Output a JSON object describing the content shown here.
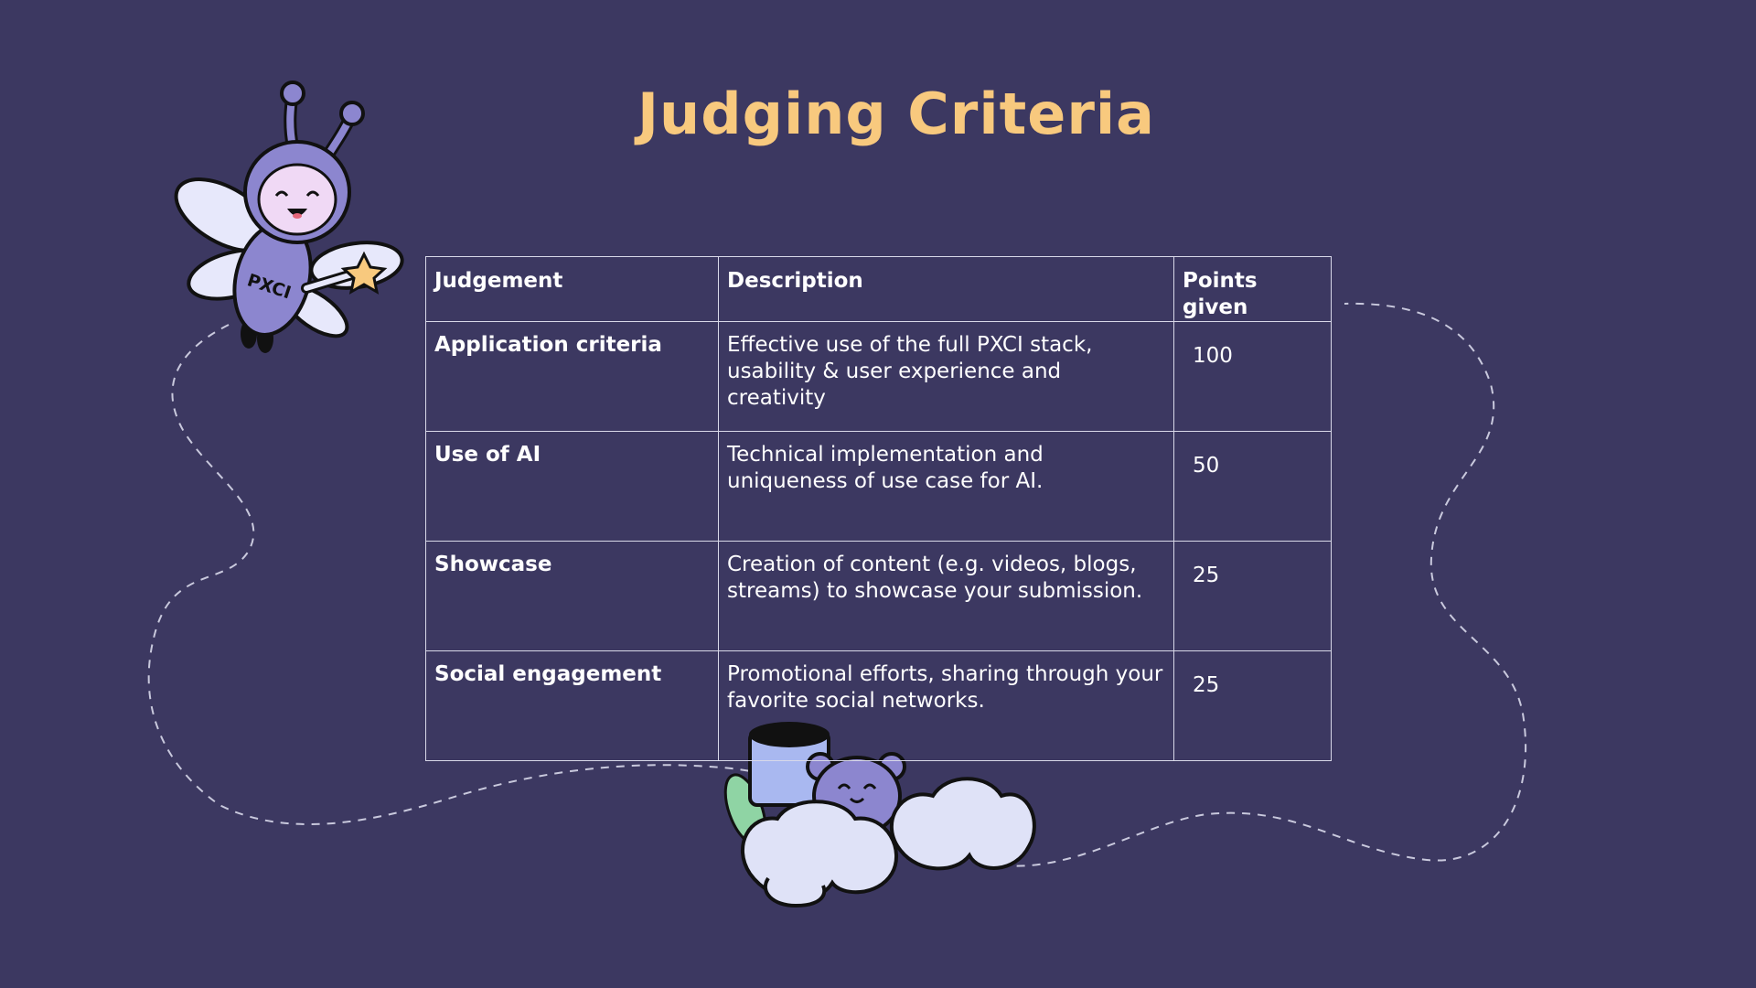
{
  "slide": {
    "title": "Judging Criteria"
  },
  "colors": {
    "background": "#3c3861",
    "title": "#f8c97e",
    "text": "#ffffff",
    "table_border": "#d8d8e8",
    "mascot_purple": "#8c86cf",
    "cloud": "#dfe2f7"
  },
  "mascot": {
    "logo_text": "PXCI"
  },
  "table": {
    "headers": [
      "Judgement",
      "Description",
      "Points given"
    ],
    "rows": [
      {
        "judgement": "Application criteria",
        "description": "Effective use of the full PXCI stack, usability & user experience and creativity",
        "points": "100"
      },
      {
        "judgement": "Use of AI",
        "description": "Technical implementation and uniqueness of use case for AI.",
        "points": "50"
      },
      {
        "judgement": "Showcase",
        "description": "Creation of content (e.g. videos, blogs, streams) to showcase your submission.",
        "points": "25"
      },
      {
        "judgement": "Social engagement",
        "description": "Promotional efforts, sharing through your favorite social networks.",
        "points": "25"
      }
    ]
  }
}
